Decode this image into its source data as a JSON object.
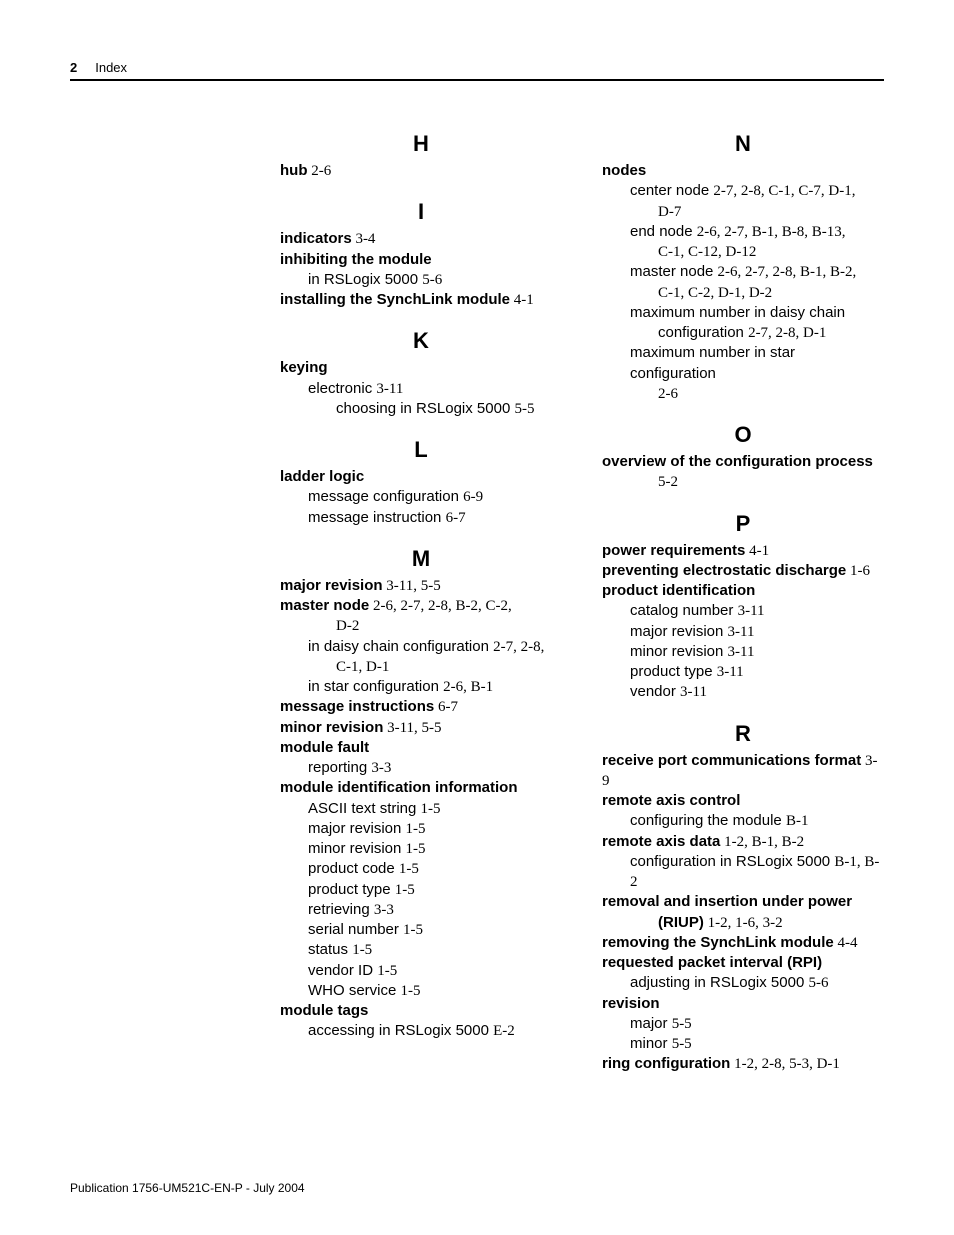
{
  "header": {
    "page_num": "2",
    "section": "Index"
  },
  "footer": "Publication 1756-UM521C-EN-P - July 2004",
  "left_col": [
    {
      "letter": "H",
      "entries": [
        {
          "lvl": 0,
          "term": "hub",
          "refs": " 2-6"
        }
      ]
    },
    {
      "letter": "I",
      "entries": [
        {
          "lvl": 0,
          "term": "indicators",
          "refs": " 3-4"
        },
        {
          "lvl": 0,
          "term": "inhibiting the module",
          "refs": ""
        },
        {
          "lvl": 1,
          "text": "in RSLogix 5000 ",
          "refs": "5-6"
        },
        {
          "lvl": 0,
          "term": "installing the SynchLink module",
          "refs": " 4-1"
        }
      ]
    },
    {
      "letter": "K",
      "entries": [
        {
          "lvl": 0,
          "term": "keying",
          "refs": ""
        },
        {
          "lvl": 1,
          "text": "electronic ",
          "refs": "3-11"
        },
        {
          "lvl": 2,
          "text": "choosing in RSLogix 5000 ",
          "refs": "5-5"
        }
      ]
    },
    {
      "letter": "L",
      "entries": [
        {
          "lvl": 0,
          "term": "ladder logic",
          "refs": ""
        },
        {
          "lvl": 1,
          "text": "message configuration ",
          "refs": "6-9"
        },
        {
          "lvl": 1,
          "text": "message instruction ",
          "refs": "6-7"
        }
      ]
    },
    {
      "letter": "M",
      "entries": [
        {
          "lvl": 0,
          "term": "major revision",
          "refs": " 3-11, 5-5"
        },
        {
          "lvl": 0,
          "term": "master node",
          "refs": " 2-6, 2-7, 2-8, B-2, C-2,"
        },
        {
          "lvl": 0,
          "cont": true,
          "refs": "D-2"
        },
        {
          "lvl": 1,
          "text": "in daisy chain configuration ",
          "refs": "2-7, 2-8,"
        },
        {
          "lvl": 1,
          "cont": true,
          "refs": "C-1, D-1"
        },
        {
          "lvl": 1,
          "text": "in star configuration ",
          "refs": "2-6, B-1"
        },
        {
          "lvl": 0,
          "term": "message instructions",
          "refs": " 6-7"
        },
        {
          "lvl": 0,
          "term": "minor revision",
          "refs": " 3-11, 5-5"
        },
        {
          "lvl": 0,
          "term": "module fault",
          "refs": ""
        },
        {
          "lvl": 1,
          "text": "reporting ",
          "refs": "3-3"
        },
        {
          "lvl": 0,
          "term": "module identification information",
          "refs": ""
        },
        {
          "lvl": 1,
          "text": "ASCII text string ",
          "refs": "1-5"
        },
        {
          "lvl": 1,
          "text": "major revision ",
          "refs": "1-5"
        },
        {
          "lvl": 1,
          "text": "minor revision ",
          "refs": "1-5"
        },
        {
          "lvl": 1,
          "text": "product code ",
          "refs": "1-5"
        },
        {
          "lvl": 1,
          "text": "product type ",
          "refs": "1-5"
        },
        {
          "lvl": 1,
          "text": "retrieving ",
          "refs": "3-3"
        },
        {
          "lvl": 1,
          "text": "serial number ",
          "refs": "1-5"
        },
        {
          "lvl": 1,
          "text": "status ",
          "refs": "1-5"
        },
        {
          "lvl": 1,
          "text": "vendor ID ",
          "refs": "1-5"
        },
        {
          "lvl": 1,
          "text": "WHO service ",
          "refs": "1-5"
        },
        {
          "lvl": 0,
          "term": "module tags",
          "refs": ""
        },
        {
          "lvl": 1,
          "text": "accessing in RSLogix 5000 ",
          "refs": "E-2"
        }
      ]
    }
  ],
  "right_col": [
    {
      "letter": "N",
      "entries": [
        {
          "lvl": 0,
          "term": "nodes",
          "refs": ""
        },
        {
          "lvl": 1,
          "text": "center node ",
          "refs": "2-7, 2-8, C-1, C-7, D-1,"
        },
        {
          "lvl": 1,
          "cont": true,
          "refs": "D-7"
        },
        {
          "lvl": 1,
          "text": "end node ",
          "refs": "2-6, 2-7, B-1, B-8, B-13,"
        },
        {
          "lvl": 1,
          "cont": true,
          "refs": "C-1, C-12, D-12"
        },
        {
          "lvl": 1,
          "text": "master node ",
          "refs": "2-6, 2-7, 2-8, B-1, B-2,"
        },
        {
          "lvl": 1,
          "cont": true,
          "refs": "C-1, C-2, D-1, D-2"
        },
        {
          "lvl": 1,
          "text": "maximum number in daisy chain"
        },
        {
          "lvl": 1,
          "cont": true,
          "text": "configuration ",
          "refs": "2-7, 2-8, D-1"
        },
        {
          "lvl": 1,
          "text": "maximum number in star configuration"
        },
        {
          "lvl": 1,
          "cont": true,
          "refs": "2-6"
        }
      ]
    },
    {
      "letter": "O",
      "entries": [
        {
          "lvl": 0,
          "term": "overview of the configuration process",
          "refs": ""
        },
        {
          "lvl": 0,
          "cont": true,
          "refs": "5-2"
        }
      ]
    },
    {
      "letter": "P",
      "entries": [
        {
          "lvl": 0,
          "term": "power requirements",
          "refs": " 4-1"
        },
        {
          "lvl": 0,
          "term": "preventing electrostatic discharge",
          "refs": " 1-6"
        },
        {
          "lvl": 0,
          "term": "product identification",
          "refs": ""
        },
        {
          "lvl": 1,
          "text": "catalog number ",
          "refs": "3-11"
        },
        {
          "lvl": 1,
          "text": "major revision ",
          "refs": "3-11"
        },
        {
          "lvl": 1,
          "text": "minor revision ",
          "refs": "3-11"
        },
        {
          "lvl": 1,
          "text": "product type ",
          "refs": "3-11"
        },
        {
          "lvl": 1,
          "text": "vendor ",
          "refs": "3-11"
        }
      ]
    },
    {
      "letter": "R",
      "entries": [
        {
          "lvl": 0,
          "term": "receive port communications format",
          "refs": " 3-9"
        },
        {
          "lvl": 0,
          "term": "remote axis control",
          "refs": ""
        },
        {
          "lvl": 1,
          "text": "configuring the module ",
          "refs": "B-1"
        },
        {
          "lvl": 0,
          "term": "remote axis data",
          "refs": " 1-2, B-1, B-2"
        },
        {
          "lvl": 1,
          "text": "configuration in RSLogix 5000 ",
          "refs": "B-1, B-2"
        },
        {
          "lvl": 0,
          "term": "removal and insertion under power"
        },
        {
          "lvl": 0,
          "cont": true,
          "term": "(RIUP)",
          "refs": " 1-2, 1-6, 3-2"
        },
        {
          "lvl": 0,
          "term": "removing the SynchLink module",
          "refs": " 4-4"
        },
        {
          "lvl": 0,
          "term": "requested packet interval (RPI)",
          "refs": ""
        },
        {
          "lvl": 1,
          "text": "adjusting in RSLogix 5000 ",
          "refs": "5-6"
        },
        {
          "lvl": 0,
          "term": "revision",
          "refs": ""
        },
        {
          "lvl": 1,
          "text": "major ",
          "refs": "5-5"
        },
        {
          "lvl": 1,
          "text": "minor ",
          "refs": "5-5"
        },
        {
          "lvl": 0,
          "term": "ring configuration",
          "refs": " 1-2, 2-8, 5-3, D-1"
        }
      ]
    }
  ]
}
